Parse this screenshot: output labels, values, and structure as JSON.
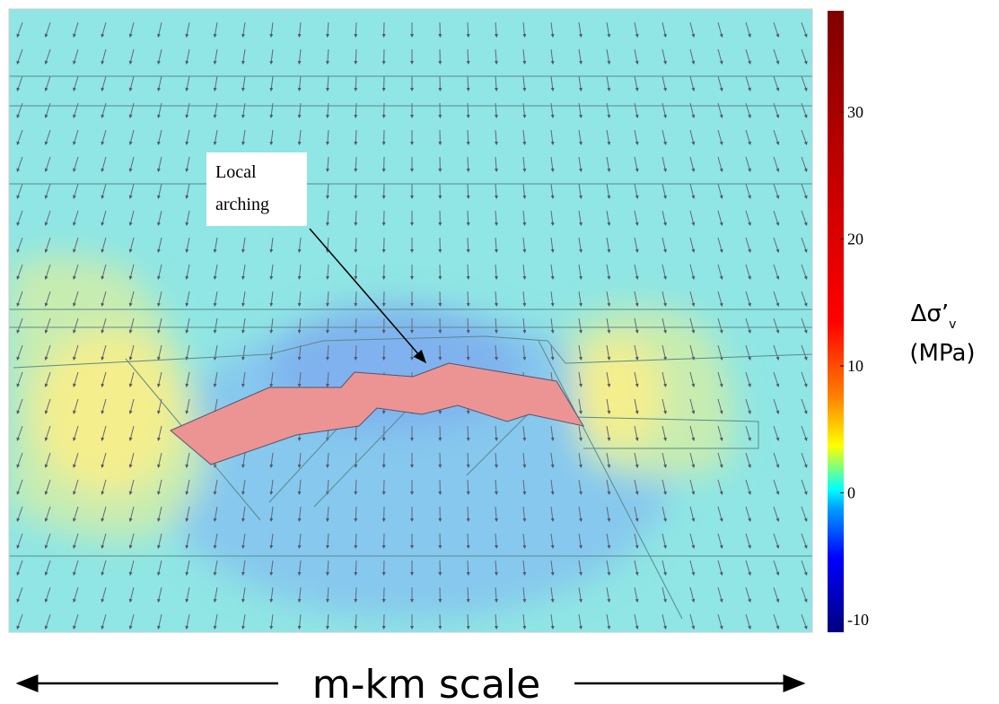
{
  "annotation": {
    "lines": [
      "Local",
      "arching"
    ]
  },
  "colorbar": {
    "label": "Δσ’",
    "label_subscript": "v",
    "unit": "(MPa)",
    "lim": [
      -11,
      38
    ],
    "ticks": [
      -10,
      0,
      10,
      20,
      30
    ]
  },
  "scale_label": "m-km scale"
}
